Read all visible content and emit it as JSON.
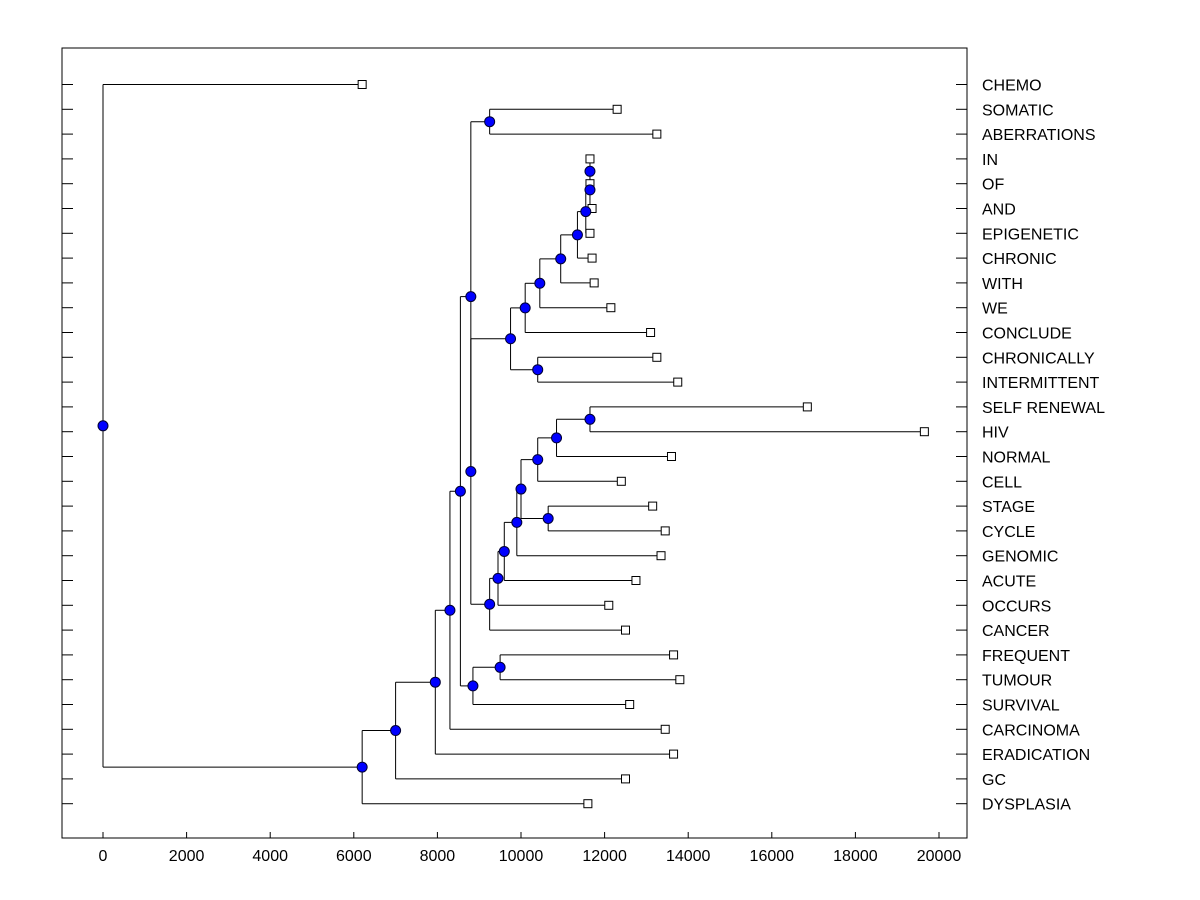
{
  "chart_data": {
    "type": "dendrogram",
    "xlim": [
      -1000,
      20000
    ],
    "x_ticks": [
      0,
      2000,
      4000,
      6000,
      8000,
      10000,
      12000,
      14000,
      16000,
      18000,
      20000
    ],
    "x_tick_labels": [
      "0",
      "2000",
      "4000",
      "6000",
      "8000",
      "10000",
      "12000",
      "14000",
      "16000",
      "18000",
      "20000"
    ],
    "leaves": [
      {
        "label": "CHEMO",
        "x": 6200
      },
      {
        "label": "SOMATIC",
        "x": 12300
      },
      {
        "label": "ABERRATIONS",
        "x": 13250
      },
      {
        "label": "IN",
        "x": 11650
      },
      {
        "label": "OF",
        "x": 11650
      },
      {
        "label": "AND",
        "x": 11700
      },
      {
        "label": "EPIGENETIC",
        "x": 11650
      },
      {
        "label": "CHRONIC",
        "x": 11700
      },
      {
        "label": "WITH",
        "x": 11750
      },
      {
        "label": "WE",
        "x": 12150
      },
      {
        "label": "CONCLUDE",
        "x": 13100
      },
      {
        "label": "CHRONICALLY",
        "x": 13250
      },
      {
        "label": "INTERMITTENT",
        "x": 13750
      },
      {
        "label": "SELF RENEWAL",
        "x": 16850
      },
      {
        "label": "HIV",
        "x": 19650
      },
      {
        "label": "NORMAL",
        "x": 13600
      },
      {
        "label": "CELL",
        "x": 12400
      },
      {
        "label": "STAGE",
        "x": 13150
      },
      {
        "label": "CYCLE",
        "x": 13450
      },
      {
        "label": "GENOMIC",
        "x": 13350
      },
      {
        "label": "ACUTE",
        "x": 12750
      },
      {
        "label": "OCCURS",
        "x": 12100
      },
      {
        "label": "CANCER",
        "x": 12500
      },
      {
        "label": "FREQUENT",
        "x": 13650
      },
      {
        "label": "TUMOUR",
        "x": 13800
      },
      {
        "label": "SURVIVAL",
        "x": 12600
      },
      {
        "label": "CARCINOMA",
        "x": 13450
      },
      {
        "label": "ERADICATION",
        "x": 13650
      },
      {
        "label": "GC",
        "x": 12500
      },
      {
        "label": "DYSPLASIA",
        "x": 11600
      }
    ],
    "merges": [
      {
        "id": "n1",
        "height": 11650,
        "children": [
          "L3",
          "L4"
        ]
      },
      {
        "id": "n2",
        "height": 11650,
        "children": [
          "n1",
          "L5"
        ]
      },
      {
        "id": "n3",
        "height": 11550,
        "children": [
          "n2",
          "L6"
        ]
      },
      {
        "id": "n4",
        "height": 11350,
        "children": [
          "n3",
          "L7"
        ]
      },
      {
        "id": "n5",
        "height": 10950,
        "children": [
          "n4",
          "L8"
        ]
      },
      {
        "id": "n6",
        "height": 10450,
        "children": [
          "n5",
          "L9"
        ]
      },
      {
        "id": "n7",
        "height": 10100,
        "children": [
          "n6",
          "L10"
        ]
      },
      {
        "id": "n8",
        "height": 10400,
        "children": [
          "L11",
          "L12"
        ]
      },
      {
        "id": "n9",
        "height": 9750,
        "children": [
          "n7",
          "n8"
        ]
      },
      {
        "id": "n10",
        "height": 9250,
        "children": [
          "L1",
          "L2"
        ]
      },
      {
        "id": "n11",
        "height": 11650,
        "children": [
          "L13",
          "L14"
        ]
      },
      {
        "id": "n12",
        "height": 10850,
        "children": [
          "n11",
          "L15"
        ]
      },
      {
        "id": "n13",
        "height": 10400,
        "children": [
          "n12",
          "L16"
        ]
      },
      {
        "id": "n14",
        "height": 10650,
        "children": [
          "L17",
          "L18"
        ]
      },
      {
        "id": "n15",
        "height": 10000,
        "children": [
          "n13",
          "n14"
        ]
      },
      {
        "id": "n16",
        "height": 9900,
        "children": [
          "n15",
          "L19"
        ]
      },
      {
        "id": "n17",
        "height": 9600,
        "children": [
          "n16",
          "L20"
        ]
      },
      {
        "id": "n18",
        "height": 9450,
        "children": [
          "n17",
          "L21"
        ]
      },
      {
        "id": "n19",
        "height": 9250,
        "children": [
          "n18",
          "L22"
        ]
      },
      {
        "id": "n20",
        "height": 8800,
        "children": [
          "n9",
          "n19"
        ]
      },
      {
        "id": "n21",
        "height": 9500,
        "children": [
          "L23",
          "L24"
        ]
      },
      {
        "id": "n22",
        "height": 8850,
        "children": [
          "n21",
          "L25"
        ]
      },
      {
        "id": "n23",
        "height": 8800,
        "children": [
          "n10",
          "n20"
        ]
      },
      {
        "id": "n24",
        "height": 8550,
        "children": [
          "n23",
          "n22"
        ]
      },
      {
        "id": "n25",
        "height": 8300,
        "children": [
          "n24",
          "L26"
        ]
      },
      {
        "id": "n26",
        "height": 7950,
        "children": [
          "n25",
          "L27"
        ]
      },
      {
        "id": "n27",
        "height": 7000,
        "children": [
          "n26",
          "L28"
        ]
      },
      {
        "id": "n28",
        "height": 6200,
        "children": [
          "n27",
          "L29"
        ]
      },
      {
        "id": "n29",
        "height": 0,
        "children": [
          "L0",
          "n28"
        ]
      }
    ],
    "colors": {
      "node": "#0000ff",
      "node_stroke": "#000033",
      "line": "#000000",
      "leaf": "#ffffff"
    }
  }
}
